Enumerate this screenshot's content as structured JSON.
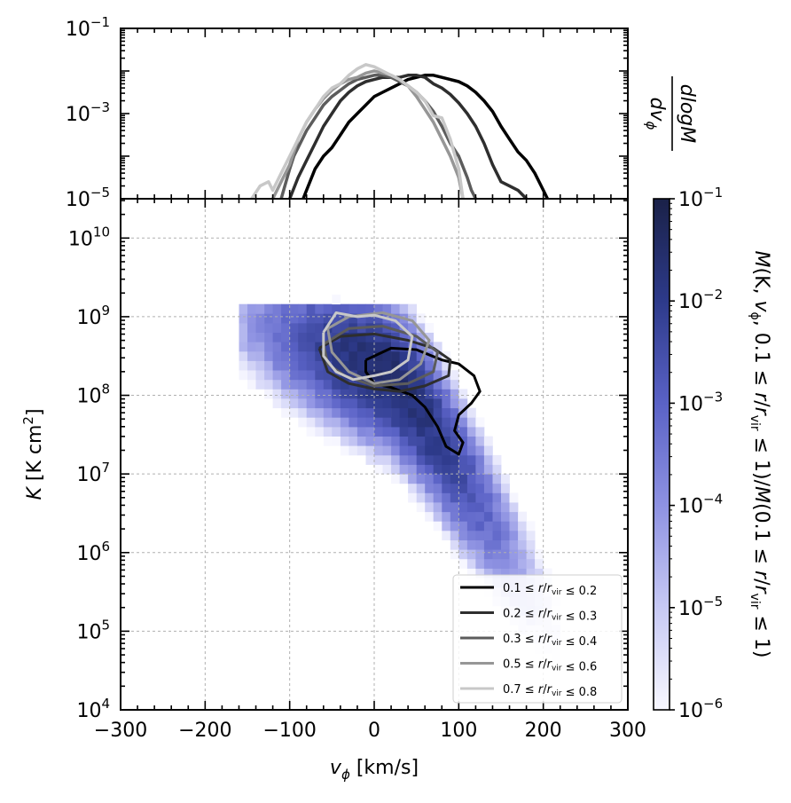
{
  "chart_data": [
    {
      "type": "line",
      "panel": "top-marginal",
      "xlim": [
        -300,
        300
      ],
      "ylim_log10": [
        -5,
        -1
      ],
      "yscale": "log",
      "yticks": [
        {
          "exp": -5,
          "label": "10",
          "sup": "−5"
        },
        {
          "exp": -3,
          "label": "10",
          "sup": "−3"
        },
        {
          "exp": -1,
          "label": "10",
          "sup": "−1"
        }
      ],
      "ylabel_parts": {
        "num": "dlogM",
        "den": "dv",
        "den_sub": "ϕ"
      },
      "grid": false,
      "series": [
        {
          "color": "#000000",
          "x": [
            -90,
            -80,
            -70,
            -60,
            -50,
            -40,
            -30,
            -20,
            -10,
            0,
            10,
            20,
            30,
            40,
            50,
            60,
            70,
            80,
            90,
            100,
            110,
            120,
            130,
            140,
            150,
            160,
            170,
            180,
            190,
            200,
            205
          ],
          "y": [
            -5.3,
            -4.8,
            -4.3,
            -4.0,
            -3.8,
            -3.5,
            -3.2,
            -3.0,
            -2.8,
            -2.6,
            -2.5,
            -2.4,
            -2.3,
            -2.2,
            -2.15,
            -2.1,
            -2.1,
            -2.15,
            -2.2,
            -2.25,
            -2.35,
            -2.5,
            -2.7,
            -2.95,
            -3.3,
            -3.6,
            -3.9,
            -4.1,
            -4.4,
            -4.8,
            -5.0
          ]
        },
        {
          "color": "#2e2e2e",
          "x": [
            -100,
            -90,
            -80,
            -70,
            -60,
            -50,
            -40,
            -30,
            -20,
            -10,
            0,
            10,
            20,
            30,
            40,
            50,
            60,
            70,
            80,
            90,
            100,
            110,
            120,
            130,
            140,
            150,
            160,
            170,
            180
          ],
          "y": [
            -5.0,
            -4.5,
            -4.1,
            -3.7,
            -3.3,
            -3.0,
            -2.7,
            -2.5,
            -2.35,
            -2.25,
            -2.2,
            -2.15,
            -2.15,
            -2.15,
            -2.1,
            -2.1,
            -2.15,
            -2.3,
            -2.4,
            -2.55,
            -2.75,
            -3.0,
            -3.3,
            -3.7,
            -4.2,
            -4.6,
            -4.7,
            -4.8,
            -5.0
          ]
        },
        {
          "color": "#5c5c5c",
          "x": [
            -110,
            -100,
            -95,
            -90,
            -80,
            -70,
            -60,
            -50,
            -40,
            -30,
            -20,
            -10,
            0,
            10,
            20,
            30,
            40,
            50,
            60,
            70,
            80,
            90,
            100,
            110,
            115,
            120
          ],
          "y": [
            -5.0,
            -4.3,
            -4.0,
            -3.8,
            -3.4,
            -3.1,
            -2.8,
            -2.6,
            -2.45,
            -2.3,
            -2.2,
            -2.15,
            -2.1,
            -2.1,
            -2.15,
            -2.25,
            -2.35,
            -2.5,
            -2.7,
            -2.95,
            -3.3,
            -3.7,
            -4.0,
            -4.5,
            -4.8,
            -5.0
          ]
        },
        {
          "color": "#969696",
          "x": [
            -120,
            -110,
            -100,
            -95,
            -90,
            -80,
            -70,
            -60,
            -50,
            -40,
            -30,
            -20,
            -10,
            0,
            10,
            20,
            30,
            40,
            50,
            60,
            70,
            80,
            90,
            100,
            105
          ],
          "y": [
            -5.0,
            -4.6,
            -4.2,
            -3.9,
            -3.6,
            -3.2,
            -2.9,
            -2.65,
            -2.45,
            -2.3,
            -2.2,
            -2.15,
            -2.05,
            -2.0,
            -2.05,
            -2.1,
            -2.2,
            -2.35,
            -2.6,
            -2.9,
            -3.2,
            -3.6,
            -4.0,
            -4.5,
            -5.0
          ]
        },
        {
          "color": "#c8c8c8",
          "x": [
            -145,
            -135,
            -125,
            -120,
            -110,
            -100,
            -90,
            -80,
            -70,
            -60,
            -50,
            -40,
            -30,
            -20,
            -10,
            0,
            10,
            20,
            30,
            40,
            50,
            60,
            70,
            80,
            90,
            100,
            105
          ],
          "y": [
            -5.0,
            -4.7,
            -4.6,
            -4.8,
            -4.4,
            -4.0,
            -3.6,
            -3.2,
            -2.9,
            -2.6,
            -2.4,
            -2.3,
            -2.1,
            -1.95,
            -1.85,
            -1.9,
            -2.0,
            -2.1,
            -2.2,
            -2.35,
            -2.5,
            -2.7,
            -3.05,
            -3.1,
            -3.6,
            -4.3,
            -5.0
          ]
        }
      ]
    },
    {
      "type": "heatmap",
      "panel": "main",
      "xlim": [
        -300,
        300
      ],
      "ylim_log10": [
        4,
        10.5
      ],
      "yscale": "log",
      "xticks": [
        -300,
        -200,
        -100,
        0,
        100,
        200,
        300
      ],
      "xticklabels": [
        "−300",
        "−200",
        "−100",
        "0",
        "100",
        "200",
        "300"
      ],
      "yticks": [
        {
          "exp": 4,
          "label": "10",
          "sup": "4"
        },
        {
          "exp": 5,
          "label": "10",
          "sup": "5"
        },
        {
          "exp": 6,
          "label": "10",
          "sup": "6"
        },
        {
          "exp": 7,
          "label": "10",
          "sup": "7"
        },
        {
          "exp": 8,
          "label": "10",
          "sup": "8"
        },
        {
          "exp": 9,
          "label": "10",
          "sup": "9"
        },
        {
          "exp": 10,
          "label": "10",
          "sup": "10"
        }
      ],
      "xlabel_parts": {
        "main": "v",
        "sub": "ϕ",
        "unit": " [km/s]"
      },
      "ylabel_parts": {
        "main": "K",
        "unit": " [K cm",
        "sup": "2",
        "close": "]"
      },
      "grid": true,
      "density_model": {
        "ridge_log10K_at_v": [
          [
            -40,
            8.5
          ],
          [
            20,
            8.2
          ],
          [
            60,
            7.7
          ],
          [
            100,
            7.0
          ],
          [
            140,
            6.3
          ],
          [
            180,
            5.6
          ]
        ],
        "peak_log10_mass_fraction": -1.3,
        "floor_log10_mass_fraction": -6
      },
      "contours": [
        {
          "series_index": 0,
          "color": "#000000",
          "points": [
            [
              -10,
              8.45
            ],
            [
              20,
              8.6
            ],
            [
              50,
              8.58
            ],
            [
              80,
              8.45
            ],
            [
              100,
              8.4
            ],
            [
              118,
              8.25
            ],
            [
              125,
              8.05
            ],
            [
              115,
              7.9
            ],
            [
              100,
              7.75
            ],
            [
              95,
              7.55
            ],
            [
              105,
              7.4
            ],
            [
              100,
              7.25
            ],
            [
              85,
              7.35
            ],
            [
              75,
              7.6
            ],
            [
              60,
              7.85
            ],
            [
              45,
              8.0
            ],
            [
              20,
              8.1
            ],
            [
              0,
              8.15
            ],
            [
              -10,
              8.3
            ],
            [
              -10,
              8.45
            ]
          ]
        },
        {
          "series_index": 1,
          "color": "#2e2e2e",
          "points": [
            [
              -65,
              8.6
            ],
            [
              -40,
              8.75
            ],
            [
              0,
              8.78
            ],
            [
              40,
              8.7
            ],
            [
              70,
              8.6
            ],
            [
              90,
              8.45
            ],
            [
              88,
              8.25
            ],
            [
              60,
              8.12
            ],
            [
              30,
              8.05
            ],
            [
              0,
              8.08
            ],
            [
              -30,
              8.15
            ],
            [
              -55,
              8.3
            ],
            [
              -65,
              8.6
            ]
          ]
        },
        {
          "series_index": 2,
          "color": "#5c5c5c",
          "points": [
            [
              -60,
              8.65
            ],
            [
              -30,
              8.85
            ],
            [
              10,
              8.88
            ],
            [
              50,
              8.75
            ],
            [
              75,
              8.55
            ],
            [
              70,
              8.3
            ],
            [
              40,
              8.15
            ],
            [
              0,
              8.12
            ],
            [
              -35,
              8.25
            ],
            [
              -55,
              8.4
            ],
            [
              -60,
              8.65
            ]
          ]
        },
        {
          "series_index": 3,
          "color": "#969696",
          "points": [
            [
              -55,
              8.85
            ],
            [
              -30,
              9.0
            ],
            [
              10,
              9.05
            ],
            [
              45,
              8.95
            ],
            [
              65,
              8.7
            ],
            [
              55,
              8.4
            ],
            [
              30,
              8.2
            ],
            [
              0,
              8.15
            ],
            [
              -30,
              8.3
            ],
            [
              -50,
              8.55
            ],
            [
              -55,
              8.85
            ]
          ]
        },
        {
          "series_index": 4,
          "color": "#c8c8c8",
          "points": [
            [
              -60,
              8.8
            ],
            [
              -45,
              9.05
            ],
            [
              -20,
              9.0
            ],
            [
              0,
              9.02
            ],
            [
              25,
              8.95
            ],
            [
              45,
              8.75
            ],
            [
              40,
              8.45
            ],
            [
              20,
              8.3
            ],
            [
              0,
              8.25
            ],
            [
              -25,
              8.2
            ],
            [
              -45,
              8.3
            ],
            [
              -60,
              8.5
            ],
            [
              -60,
              8.8
            ]
          ]
        }
      ],
      "legend": {
        "placement": "lower-right",
        "entries": [
          {
            "lo": "0.1",
            "hi": "0.2",
            "color": "#000000"
          },
          {
            "lo": "0.2",
            "hi": "0.3",
            "color": "#2e2e2e"
          },
          {
            "lo": "0.3",
            "hi": "0.4",
            "color": "#5c5c5c"
          },
          {
            "lo": "0.5",
            "hi": "0.6",
            "color": "#969696"
          },
          {
            "lo": "0.7",
            "hi": "0.8",
            "color": "#c8c8c8"
          }
        ]
      },
      "colorbar": {
        "scale": "log",
        "range_log10": [
          -6,
          -1
        ],
        "cmap": [
          "#f7f7ff",
          "#c7c9f4",
          "#8e92e2",
          "#5a62c6",
          "#2d3a8a",
          "#1a2148"
        ],
        "ticks": [
          {
            "exp": -6,
            "label": "10",
            "sup": "−6"
          },
          {
            "exp": -5,
            "label": "10",
            "sup": "−5"
          },
          {
            "exp": -4,
            "label": "10",
            "sup": "−4"
          },
          {
            "exp": -3,
            "label": "10",
            "sup": "−3"
          },
          {
            "exp": -2,
            "label": "10",
            "sup": "−2"
          },
          {
            "exp": -1,
            "label": "10",
            "sup": "−1"
          }
        ],
        "label": "M(K, vϕ, 0.1 ≤ r/rvir ≤ 1)/M(0.1 ≤ r/rvir ≤ 1)"
      }
    }
  ]
}
